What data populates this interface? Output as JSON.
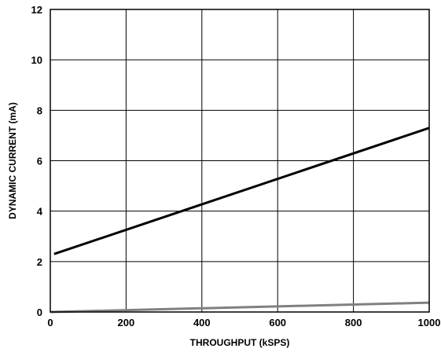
{
  "chart_data": {
    "type": "line",
    "title": "",
    "xlabel": "THROUGHPUT (kSPS)",
    "ylabel": "DYNAMIC CURRENT (mA)",
    "xlim": [
      0,
      1000
    ],
    "ylim": [
      0,
      12
    ],
    "xticks": [
      0,
      200,
      400,
      600,
      800,
      1000
    ],
    "yticks": [
      0,
      2,
      4,
      6,
      8,
      10,
      12
    ],
    "xtick_labels": [
      "0",
      "200",
      "400",
      "600",
      "800",
      "1000"
    ],
    "ytick_labels": [
      "0",
      "2",
      "4",
      "6",
      "8",
      "10",
      "12"
    ],
    "grid": true,
    "legend": "none",
    "series": [
      {
        "color": "#000000",
        "x": [
          10,
          1000
        ],
        "y": [
          2.3,
          7.3
        ]
      },
      {
        "color": "#808080",
        "x": [
          0,
          1000
        ],
        "y": [
          0.0,
          0.37
        ]
      }
    ]
  }
}
